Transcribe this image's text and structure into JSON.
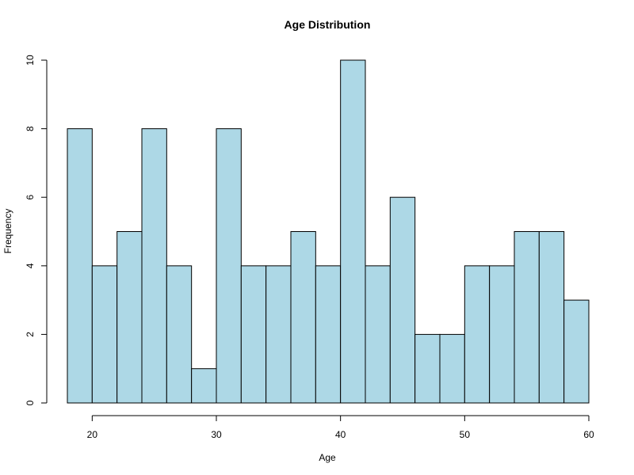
{
  "chart_data": {
    "type": "bar",
    "title": "Age Distribution",
    "xlabel": "Age",
    "ylabel": "Frequency",
    "bin_edges": [
      18,
      20,
      22,
      24,
      26,
      28,
      30,
      32,
      34,
      36,
      38,
      40,
      42,
      44,
      46,
      48,
      50,
      52,
      54,
      56,
      58,
      60
    ],
    "values": [
      8,
      4,
      5,
      8,
      4,
      1,
      8,
      4,
      4,
      5,
      4,
      10,
      4,
      6,
      2,
      2,
      4,
      4,
      5,
      5,
      3
    ],
    "xlim": [
      18,
      60
    ],
    "ylim": [
      0,
      10
    ],
    "x_ticks": [
      20,
      30,
      40,
      50,
      60
    ],
    "y_ticks": [
      0,
      2,
      4,
      6,
      8,
      10
    ],
    "bar_fill": "#add8e6",
    "bar_stroke": "#000000",
    "grid": false
  }
}
